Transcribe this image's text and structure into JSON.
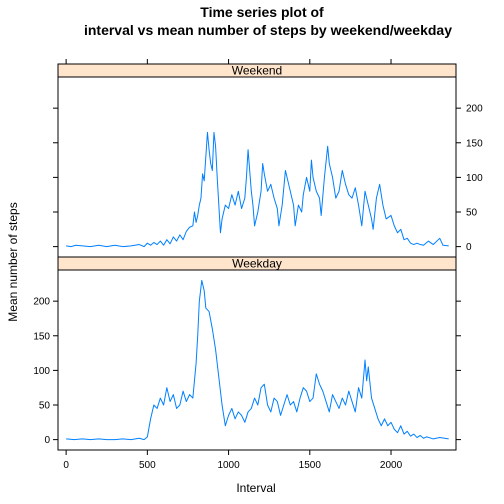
{
  "chart_data": {
    "type": "line",
    "title_line1": "Time series plot of",
    "title_line2": "interval vs mean number of steps by weekend/weekday",
    "xlabel": "Interval",
    "ylabel": "Mean number of steps",
    "xlim": [
      -50,
      2400
    ],
    "ylim": [
      -15,
      245
    ],
    "x_ticks": [
      0,
      500,
      1000,
      1500,
      2000
    ],
    "y_ticks": [
      0,
      50,
      100,
      150,
      200
    ],
    "line_color": "#0080ff",
    "strip_color": "#ffe5cc",
    "panels": [
      {
        "name": "Weekend",
        "y_axis_side": "right",
        "points": [
          [
            0,
            1
          ],
          [
            30,
            0
          ],
          [
            60,
            2
          ],
          [
            100,
            1
          ],
          [
            150,
            0
          ],
          [
            200,
            2
          ],
          [
            250,
            0
          ],
          [
            300,
            2
          ],
          [
            350,
            0
          ],
          [
            400,
            1
          ],
          [
            450,
            3
          ],
          [
            480,
            0
          ],
          [
            500,
            5
          ],
          [
            520,
            2
          ],
          [
            540,
            6
          ],
          [
            560,
            3
          ],
          [
            580,
            8
          ],
          [
            600,
            2
          ],
          [
            620,
            10
          ],
          [
            640,
            4
          ],
          [
            660,
            14
          ],
          [
            680,
            8
          ],
          [
            700,
            17
          ],
          [
            720,
            10
          ],
          [
            740,
            22
          ],
          [
            760,
            28
          ],
          [
            780,
            30
          ],
          [
            790,
            50
          ],
          [
            800,
            35
          ],
          [
            810,
            45
          ],
          [
            820,
            60
          ],
          [
            830,
            70
          ],
          [
            840,
            105
          ],
          [
            850,
            95
          ],
          [
            860,
            130
          ],
          [
            870,
            165
          ],
          [
            880,
            140
          ],
          [
            890,
            120
          ],
          [
            900,
            110
          ],
          [
            910,
            165
          ],
          [
            920,
            145
          ],
          [
            930,
            100
          ],
          [
            940,
            60
          ],
          [
            950,
            20
          ],
          [
            960,
            40
          ],
          [
            980,
            60
          ],
          [
            1000,
            55
          ],
          [
            1020,
            75
          ],
          [
            1040,
            60
          ],
          [
            1060,
            80
          ],
          [
            1080,
            55
          ],
          [
            1100,
            70
          ],
          [
            1110,
            100
          ],
          [
            1120,
            140
          ],
          [
            1130,
            110
          ],
          [
            1140,
            80
          ],
          [
            1150,
            60
          ],
          [
            1160,
            30
          ],
          [
            1180,
            50
          ],
          [
            1200,
            80
          ],
          [
            1210,
            120
          ],
          [
            1220,
            105
          ],
          [
            1240,
            80
          ],
          [
            1260,
            90
          ],
          [
            1280,
            70
          ],
          [
            1300,
            55
          ],
          [
            1310,
            30
          ],
          [
            1330,
            60
          ],
          [
            1350,
            110
          ],
          [
            1370,
            90
          ],
          [
            1400,
            60
          ],
          [
            1410,
            30
          ],
          [
            1430,
            60
          ],
          [
            1450,
            50
          ],
          [
            1460,
            75
          ],
          [
            1480,
            100
          ],
          [
            1500,
            80
          ],
          [
            1510,
            125
          ],
          [
            1520,
            100
          ],
          [
            1540,
            80
          ],
          [
            1560,
            70
          ],
          [
            1570,
            45
          ],
          [
            1590,
            100
          ],
          [
            1610,
            145
          ],
          [
            1620,
            120
          ],
          [
            1640,
            100
          ],
          [
            1660,
            70
          ],
          [
            1680,
            80
          ],
          [
            1700,
            110
          ],
          [
            1720,
            90
          ],
          [
            1740,
            75
          ],
          [
            1760,
            70
          ],
          [
            1780,
            85
          ],
          [
            1800,
            60
          ],
          [
            1820,
            30
          ],
          [
            1840,
            80
          ],
          [
            1860,
            60
          ],
          [
            1880,
            40
          ],
          [
            1890,
            25
          ],
          [
            1910,
            70
          ],
          [
            1930,
            90
          ],
          [
            1950,
            60
          ],
          [
            1970,
            40
          ],
          [
            2000,
            45
          ],
          [
            2020,
            30
          ],
          [
            2040,
            20
          ],
          [
            2060,
            25
          ],
          [
            2080,
            10
          ],
          [
            2100,
            12
          ],
          [
            2120,
            5
          ],
          [
            2140,
            3
          ],
          [
            2160,
            5
          ],
          [
            2180,
            3
          ],
          [
            2200,
            2
          ],
          [
            2230,
            8
          ],
          [
            2260,
            3
          ],
          [
            2300,
            12
          ],
          [
            2320,
            2
          ],
          [
            2355,
            1
          ]
        ]
      },
      {
        "name": "Weekday",
        "y_axis_side": "left",
        "points": [
          [
            0,
            1
          ],
          [
            50,
            0
          ],
          [
            100,
            1
          ],
          [
            150,
            0
          ],
          [
            200,
            1
          ],
          [
            250,
            0
          ],
          [
            300,
            0
          ],
          [
            350,
            1
          ],
          [
            400,
            0
          ],
          [
            450,
            2
          ],
          [
            480,
            0
          ],
          [
            500,
            4
          ],
          [
            520,
            30
          ],
          [
            540,
            50
          ],
          [
            560,
            45
          ],
          [
            580,
            60
          ],
          [
            600,
            50
          ],
          [
            620,
            75
          ],
          [
            640,
            55
          ],
          [
            660,
            65
          ],
          [
            680,
            45
          ],
          [
            700,
            50
          ],
          [
            720,
            70
          ],
          [
            740,
            55
          ],
          [
            760,
            65
          ],
          [
            780,
            60
          ],
          [
            800,
            110
          ],
          [
            810,
            150
          ],
          [
            820,
            200
          ],
          [
            835,
            230
          ],
          [
            850,
            215
          ],
          [
            860,
            190
          ],
          [
            880,
            185
          ],
          [
            900,
            160
          ],
          [
            920,
            130
          ],
          [
            940,
            90
          ],
          [
            960,
            50
          ],
          [
            980,
            20
          ],
          [
            1000,
            35
          ],
          [
            1020,
            45
          ],
          [
            1040,
            30
          ],
          [
            1060,
            40
          ],
          [
            1080,
            35
          ],
          [
            1100,
            25
          ],
          [
            1120,
            40
          ],
          [
            1140,
            45
          ],
          [
            1160,
            60
          ],
          [
            1180,
            50
          ],
          [
            1200,
            75
          ],
          [
            1220,
            80
          ],
          [
            1240,
            50
          ],
          [
            1260,
            40
          ],
          [
            1280,
            60
          ],
          [
            1300,
            55
          ],
          [
            1320,
            35
          ],
          [
            1340,
            50
          ],
          [
            1360,
            65
          ],
          [
            1380,
            50
          ],
          [
            1400,
            55
          ],
          [
            1420,
            40
          ],
          [
            1440,
            60
          ],
          [
            1460,
            75
          ],
          [
            1480,
            70
          ],
          [
            1500,
            55
          ],
          [
            1520,
            60
          ],
          [
            1540,
            95
          ],
          [
            1560,
            80
          ],
          [
            1580,
            70
          ],
          [
            1600,
            55
          ],
          [
            1620,
            40
          ],
          [
            1640,
            65
          ],
          [
            1660,
            55
          ],
          [
            1680,
            45
          ],
          [
            1700,
            60
          ],
          [
            1720,
            50
          ],
          [
            1740,
            70
          ],
          [
            1760,
            55
          ],
          [
            1780,
            40
          ],
          [
            1800,
            75
          ],
          [
            1820,
            60
          ],
          [
            1840,
            115
          ],
          [
            1850,
            85
          ],
          [
            1860,
            105
          ],
          [
            1880,
            60
          ],
          [
            1900,
            45
          ],
          [
            1920,
            30
          ],
          [
            1940,
            20
          ],
          [
            1960,
            30
          ],
          [
            1980,
            20
          ],
          [
            2000,
            25
          ],
          [
            2020,
            15
          ],
          [
            2040,
            10
          ],
          [
            2060,
            20
          ],
          [
            2080,
            8
          ],
          [
            2100,
            12
          ],
          [
            2120,
            5
          ],
          [
            2140,
            8
          ],
          [
            2160,
            3
          ],
          [
            2180,
            6
          ],
          [
            2200,
            2
          ],
          [
            2220,
            4
          ],
          [
            2260,
            1
          ],
          [
            2300,
            3
          ],
          [
            2355,
            1
          ]
        ]
      }
    ]
  }
}
